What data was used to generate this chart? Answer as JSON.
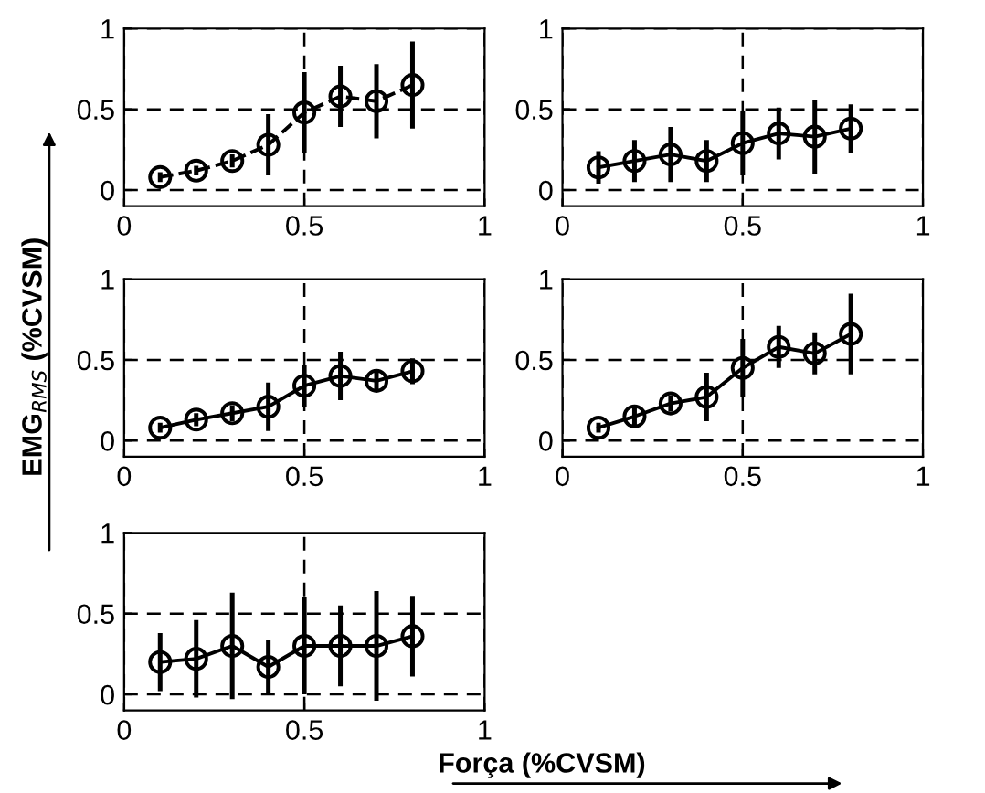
{
  "chart_data": [
    {
      "type": "line",
      "x": [
        0.1,
        0.2,
        0.3,
        0.4,
        0.5,
        0.6,
        0.7,
        0.8
      ],
      "series": [
        {
          "color": "#000000",
          "line_style": "dashed",
          "values": [
            0.08,
            0.12,
            0.18,
            0.28,
            0.48,
            0.58,
            0.55,
            0.65
          ],
          "errors": [
            0.03,
            0.03,
            0.04,
            0.19,
            0.25,
            0.19,
            0.23,
            0.27
          ]
        }
      ],
      "xlim": [
        0,
        1
      ],
      "ylim": [
        -0.1,
        1
      ],
      "xticks": [
        0,
        0.5,
        1
      ],
      "yticks": [
        0,
        0.5,
        1
      ],
      "grid": true,
      "marker": "circle"
    },
    {
      "type": "line",
      "x": [
        0.1,
        0.2,
        0.3,
        0.4,
        0.5,
        0.6,
        0.7,
        0.8
      ],
      "series": [
        {
          "color": "#000000",
          "line_style": "solid",
          "values": [
            0.14,
            0.18,
            0.22,
            0.18,
            0.29,
            0.35,
            0.33,
            0.38
          ],
          "errors": [
            0.1,
            0.13,
            0.17,
            0.13,
            0.2,
            0.16,
            0.23,
            0.15
          ]
        }
      ],
      "xlim": [
        0,
        1
      ],
      "ylim": [
        -0.1,
        1
      ],
      "xticks": [
        0,
        0.5,
        1
      ],
      "yticks": [
        0,
        0.5,
        1
      ],
      "grid": true,
      "marker": "circle"
    },
    {
      "type": "line",
      "x": [
        0.1,
        0.2,
        0.3,
        0.4,
        0.5,
        0.6,
        0.7,
        0.8
      ],
      "series": [
        {
          "color": "#000000",
          "line_style": "solid",
          "values": [
            0.08,
            0.13,
            0.17,
            0.21,
            0.34,
            0.4,
            0.37,
            0.43
          ],
          "errors": [
            0.03,
            0.04,
            0.05,
            0.15,
            0.13,
            0.15,
            0.06,
            0.08
          ]
        }
      ],
      "xlim": [
        0,
        1
      ],
      "ylim": [
        -0.1,
        1
      ],
      "xticks": [
        0,
        0.5,
        1
      ],
      "yticks": [
        0,
        0.5,
        1
      ],
      "grid": true,
      "marker": "circle",
      "ylabel": "EMG$_{RMS}$ (%CVSM)"
    },
    {
      "type": "line",
      "x": [
        0.1,
        0.2,
        0.3,
        0.4,
        0.5,
        0.6,
        0.7,
        0.8
      ],
      "series": [
        {
          "color": "#000000",
          "line_style": "solid",
          "values": [
            0.08,
            0.15,
            0.23,
            0.27,
            0.45,
            0.58,
            0.54,
            0.66
          ],
          "errors": [
            0.03,
            0.07,
            0.05,
            0.15,
            0.18,
            0.13,
            0.13,
            0.25
          ]
        }
      ],
      "xlim": [
        0,
        1
      ],
      "ylim": [
        -0.1,
        1
      ],
      "xticks": [
        0,
        0.5,
        1
      ],
      "yticks": [
        0,
        0.5,
        1
      ],
      "grid": true,
      "marker": "circle"
    },
    {
      "type": "line",
      "x": [
        0.1,
        0.2,
        0.3,
        0.4,
        0.5,
        0.6,
        0.7,
        0.8
      ],
      "series": [
        {
          "color": "#000000",
          "line_style": "solid",
          "values": [
            0.2,
            0.22,
            0.3,
            0.17,
            0.3,
            0.3,
            0.3,
            0.36
          ],
          "errors": [
            0.18,
            0.24,
            0.33,
            0.17,
            0.3,
            0.25,
            0.34,
            0.25
          ]
        }
      ],
      "xlim": [
        0,
        1
      ],
      "ylim": [
        -0.1,
        1
      ],
      "xticks": [
        0,
        0.5,
        1
      ],
      "yticks": [
        0,
        0.5,
        1
      ],
      "grid": true,
      "marker": "circle",
      "xlabel": "Força (%CVSM)"
    }
  ]
}
